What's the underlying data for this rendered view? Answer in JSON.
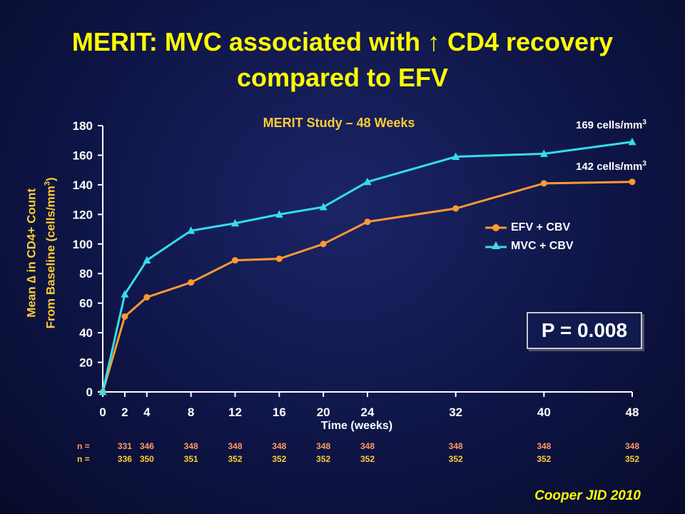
{
  "title_line1": "MERIT: MVC associated with ↑ CD4 recovery",
  "title_line2": "compared to EFV",
  "citation": "Cooper JID 2010",
  "p_value": "P = 0.008",
  "annotations": {
    "mvc_end_value": "169 cells/mm",
    "efv_end_value": "142 cells/mm",
    "unit_exponent": "3"
  },
  "colors": {
    "efv": "#ff9933",
    "mvc": "#33ddee",
    "title": "#ffff00",
    "axis_title": "#ffcc33",
    "n_efv": "#ff9966",
    "n_mvc": "#ffcc33"
  },
  "chart_data": {
    "type": "line",
    "title": "MERIT Study – 48 Weeks",
    "xlabel": "Time (weeks)",
    "ylabel_line1": "Mean ∆ in CD4+ Count",
    "ylabel_line2": "From Baseline (cells/mm",
    "ylabel_exponent": "3",
    "ylabel_close": ")",
    "x": [
      0,
      2,
      4,
      8,
      12,
      16,
      20,
      24,
      32,
      40,
      48
    ],
    "xlim": [
      0,
      48
    ],
    "ylim": [
      0,
      180
    ],
    "yticks": [
      0,
      20,
      40,
      60,
      80,
      100,
      120,
      140,
      160,
      180
    ],
    "series": [
      {
        "name": "EFV + CBV",
        "marker": "circle",
        "values": [
          0,
          51,
          64,
          74,
          89,
          90,
          100,
          115,
          124,
          141,
          142
        ]
      },
      {
        "name": "MVC + CBV",
        "marker": "triangle",
        "values": [
          0,
          66,
          89,
          109,
          114,
          120,
          125,
          142,
          159,
          161,
          169
        ]
      }
    ],
    "n_at_risk": {
      "prefix": "n =",
      "x": [
        2,
        4,
        8,
        12,
        16,
        20,
        24,
        32,
        40,
        48
      ],
      "rows": [
        [
          "331",
          "346",
          "348",
          "348",
          "348",
          "348",
          "348",
          "348",
          "348",
          "348"
        ],
        [
          "336",
          "350",
          "351",
          "352",
          "352",
          "352",
          "352",
          "352",
          "352",
          "352"
        ]
      ]
    }
  }
}
